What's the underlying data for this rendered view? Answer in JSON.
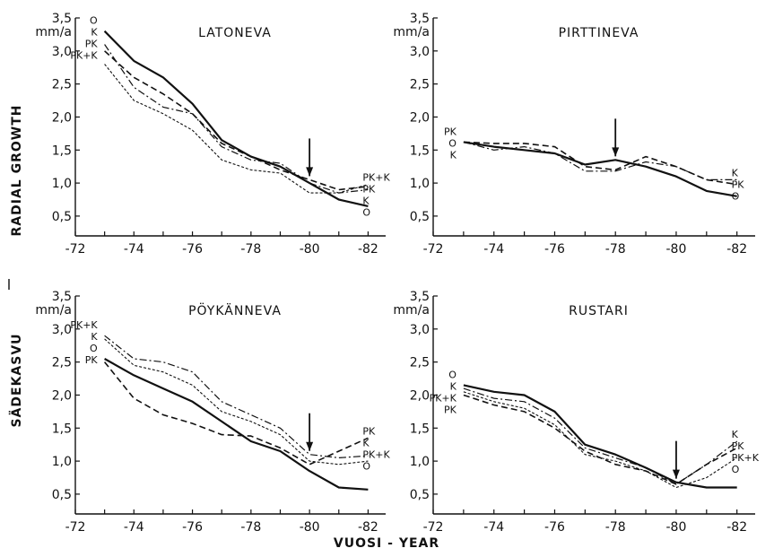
{
  "figure": {
    "ylabel_fi": "SÄDEKASVU",
    "ylabel_en": "RADIAL GROWTH",
    "xlabel": "VUOSI - YEAR"
  },
  "chart_data": [
    {
      "type": "line",
      "title": "LATONEVA",
      "unit_label": "mm/a",
      "x": [
        73,
        74,
        75,
        76,
        77,
        78,
        79,
        80,
        81,
        82
      ],
      "x_ticks": [
        "-72",
        "-74",
        "-76",
        "-78",
        "-80",
        "-82"
      ],
      "y_ticks": [
        "0,5",
        "1,0",
        "1,5",
        "2,0",
        "2,5",
        "3,0",
        "3,5"
      ],
      "xlim": [
        72,
        82.6
      ],
      "ylim": [
        0.2,
        3.5
      ],
      "grid": false,
      "arrow_year": 80,
      "series": [
        {
          "name": "O",
          "style": "solid",
          "values": [
            3.3,
            2.85,
            2.6,
            2.2,
            1.65,
            1.4,
            1.25,
            1.0,
            0.75,
            0.65
          ]
        },
        {
          "name": "K",
          "style": "dashdot",
          "values": [
            3.1,
            2.45,
            2.15,
            2.05,
            1.55,
            1.35,
            1.3,
            1.0,
            0.85,
            0.9
          ]
        },
        {
          "name": "PK",
          "style": "dashed",
          "values": [
            3.0,
            2.6,
            2.35,
            2.05,
            1.6,
            1.4,
            1.2,
            1.05,
            0.9,
            0.95
          ]
        },
        {
          "name": "PK+K",
          "style": "dotted",
          "values": [
            2.8,
            2.25,
            2.05,
            1.8,
            1.35,
            1.2,
            1.15,
            0.85,
            0.85,
            0.98
          ]
        }
      ],
      "left_labels": [
        "O",
        "K",
        "PK",
        "PK+K"
      ],
      "right_labels": [
        "PK+K",
        "PK",
        "K",
        "O"
      ]
    },
    {
      "type": "line",
      "title": "PIRTTINEVA",
      "unit_label": "mm/a",
      "x": [
        73,
        74,
        75,
        76,
        77,
        78,
        79,
        80,
        81,
        82
      ],
      "x_ticks": [
        "-72",
        "-74",
        "-76",
        "-78",
        "-80",
        "-82"
      ],
      "y_ticks": [
        "0,5",
        "1,0",
        "1,5",
        "2,0",
        "2,5",
        "3,0",
        "3,5"
      ],
      "xlim": [
        72,
        82.6
      ],
      "ylim": [
        0.2,
        3.5
      ],
      "grid": false,
      "arrow_year": 78,
      "series": [
        {
          "name": "O",
          "style": "solid",
          "values": [
            1.62,
            1.55,
            1.5,
            1.45,
            1.28,
            1.35,
            1.25,
            1.1,
            0.88,
            0.8
          ]
        },
        {
          "name": "PK",
          "style": "dashed",
          "values": [
            1.62,
            1.6,
            1.6,
            1.55,
            1.25,
            1.2,
            1.4,
            1.25,
            1.05,
            0.98
          ]
        },
        {
          "name": "K",
          "style": "dashdot",
          "values": [
            1.62,
            1.5,
            1.55,
            1.45,
            1.18,
            1.18,
            1.32,
            1.25,
            1.05,
            1.05
          ]
        }
      ],
      "left_labels": [
        "PK",
        "O",
        "K"
      ],
      "right_labels": [
        "K",
        "PK",
        "O"
      ]
    },
    {
      "type": "line",
      "title": "PÖYKÄNNEVA",
      "unit_label": "mm/a",
      "x": [
        73,
        74,
        75,
        76,
        77,
        78,
        79,
        80,
        81,
        82
      ],
      "x_ticks": [
        "-72",
        "-74",
        "-76",
        "-78",
        "-80",
        "-82"
      ],
      "y_ticks": [
        "0,5",
        "1,0",
        "1,5",
        "2,0",
        "2,5",
        "3,0",
        "3,5"
      ],
      "xlim": [
        72,
        82.6
      ],
      "ylim": [
        0.2,
        3.5
      ],
      "grid": false,
      "arrow_year": 80,
      "series": [
        {
          "name": "O",
          "style": "solid",
          "values": [
            2.55,
            2.3,
            2.1,
            1.9,
            1.6,
            1.3,
            1.15,
            0.85,
            0.6,
            0.57
          ]
        },
        {
          "name": "PK",
          "style": "dashed",
          "values": [
            2.5,
            1.95,
            1.7,
            1.57,
            1.4,
            1.38,
            1.2,
            0.95,
            1.15,
            1.35
          ]
        },
        {
          "name": "K",
          "style": "dashdot",
          "values": [
            2.9,
            2.55,
            2.5,
            2.35,
            1.9,
            1.7,
            1.5,
            1.1,
            1.05,
            1.08
          ]
        },
        {
          "name": "PK+K",
          "style": "dotted",
          "values": [
            2.85,
            2.45,
            2.35,
            2.15,
            1.75,
            1.6,
            1.4,
            1.0,
            0.95,
            1.0
          ]
        }
      ],
      "left_labels": [
        "PK+K",
        "K",
        "O",
        "PK"
      ],
      "right_labels": [
        "PK",
        "K",
        "PK+K",
        "O"
      ]
    },
    {
      "type": "line",
      "title": "RUSTARI",
      "unit_label": "mm/a",
      "x": [
        73,
        74,
        75,
        76,
        77,
        78,
        79,
        80,
        81,
        82
      ],
      "x_ticks": [
        "-72",
        "-74",
        "-76",
        "-78",
        "-80",
        "-82"
      ],
      "y_ticks": [
        "0,5",
        "1,0",
        "1,5",
        "2,0",
        "2,5",
        "3,0",
        "3,5"
      ],
      "xlim": [
        72,
        82.6
      ],
      "ylim": [
        0.2,
        3.5
      ],
      "grid": false,
      "arrow_year": 80,
      "series": [
        {
          "name": "O",
          "style": "solid",
          "values": [
            2.15,
            2.05,
            2.0,
            1.75,
            1.25,
            1.1,
            0.9,
            0.68,
            0.6,
            0.6
          ]
        },
        {
          "name": "K",
          "style": "dashdot",
          "values": [
            2.1,
            1.95,
            1.9,
            1.65,
            1.2,
            1.05,
            0.9,
            0.65,
            0.95,
            1.3
          ]
        },
        {
          "name": "PK",
          "style": "dashed",
          "values": [
            2.0,
            1.85,
            1.75,
            1.5,
            1.15,
            0.95,
            0.85,
            0.65,
            0.95,
            1.2
          ]
        },
        {
          "name": "PK+K",
          "style": "dotted",
          "values": [
            2.05,
            1.9,
            1.8,
            1.55,
            1.1,
            1.0,
            0.85,
            0.6,
            0.75,
            1.05
          ]
        }
      ],
      "left_labels": [
        "O",
        "K",
        "PK+K",
        "PK"
      ],
      "right_labels": [
        "K",
        "PK",
        "PK+K",
        "O"
      ]
    }
  ]
}
